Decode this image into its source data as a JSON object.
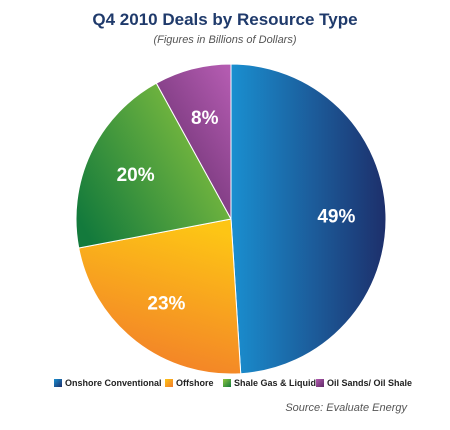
{
  "chart_data": {
    "type": "pie",
    "title": "Q4 2010 Deals by Resource Type",
    "subtitle": "(Figures in Billions of Dollars)",
    "slices": [
      {
        "name": "Onshore Conventional",
        "value": 49,
        "label": "49%",
        "color_light": "#1a8fd0",
        "color_dark": "#1d2f6b"
      },
      {
        "name": "Offshore",
        "value": 23,
        "label": "23%",
        "color_light": "#fdc515",
        "color_dark": "#f27c2a"
      },
      {
        "name": "Shale Gas & Liquids",
        "value": 20,
        "label": "20%",
        "color_light": "#8dc63f",
        "color_dark": "#137a3c"
      },
      {
        "name": "Oil Sands/ Oil Shale",
        "value": 8,
        "label": "8%",
        "color_light": "#b35bb0",
        "color_dark": "#5f2a67"
      }
    ],
    "legend_position": "bottom",
    "source": "Source: Evaluate Energy"
  }
}
